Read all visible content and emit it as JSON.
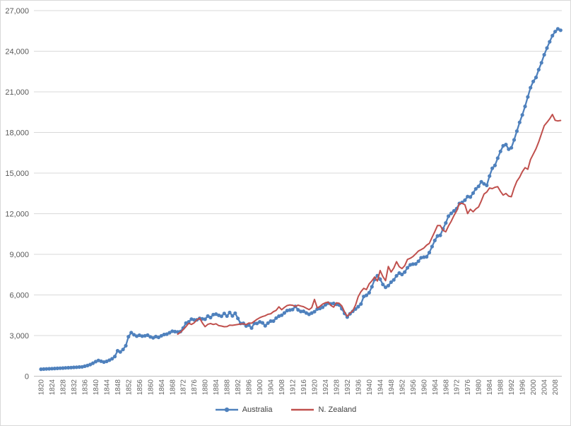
{
  "chart_data": {
    "type": "line",
    "title": "",
    "legend_position": "bottom",
    "grid": "horizontal",
    "y_axis": {
      "min": 0,
      "max": 27000,
      "step": 3000,
      "tick_labels": [
        "0",
        "3,000",
        "6,000",
        "9,000",
        "12,000",
        "15,000",
        "18,000",
        "21,000",
        "24,000",
        "27,000"
      ]
    },
    "x_axis": {
      "first_year": 1820,
      "last_year": 2010,
      "label_first": 1820,
      "label_last": 2008,
      "label_step": 4,
      "tick_labels": [
        "1820",
        "1824",
        "1828",
        "1832",
        "1836",
        "1840",
        "1844",
        "1848",
        "1852",
        "1856",
        "1860",
        "1864",
        "1868",
        "1872",
        "1876",
        "1880",
        "1884",
        "1888",
        "1892",
        "1896",
        "1900",
        "1904",
        "1908",
        "1912",
        "1916",
        "1920",
        "1924",
        "1928",
        "1932",
        "1936",
        "1940",
        "1944",
        "1948",
        "1952",
        "1956",
        "1960",
        "1964",
        "1968",
        "1972",
        "1976",
        "1980",
        "1984",
        "1988",
        "1992",
        "1996",
        "2000",
        "2004",
        "2008"
      ]
    },
    "series": [
      {
        "name": "Australia",
        "color": "#4F81BD",
        "marker": "circle",
        "start_year": 1820,
        "values": [
          518,
          528,
          538,
          548,
          558,
          569,
          580,
          591,
          602,
          614,
          626,
          638,
          650,
          663,
          676,
          690,
          734,
          787,
          859,
          959,
          1075,
          1164,
          1105,
          1043,
          1097,
          1183,
          1291,
          1457,
          1878,
          1790,
          1973,
          2250,
          2916,
          3218,
          3061,
          2959,
          3025,
          2958,
          2986,
          3031,
          2904,
          2835,
          2925,
          2870,
          2986,
          3079,
          3104,
          3211,
          3324,
          3290,
          3273,
          3299,
          3553,
          3922,
          4013,
          4216,
          4164,
          4161,
          4274,
          4238,
          4207,
          4439,
          4333,
          4551,
          4584,
          4500,
          4425,
          4634,
          4438,
          4702,
          4458,
          4654,
          4270,
          3895,
          3908,
          3712,
          3771,
          3559,
          3910,
          3899,
          4013,
          3937,
          3727,
          3921,
          4069,
          4069,
          4294,
          4437,
          4501,
          4672,
          4846,
          4886,
          4919,
          5157,
          4898,
          4778,
          4795,
          4669,
          4571,
          4666,
          4766,
          4962,
          5005,
          5094,
          5277,
          5394,
          5340,
          5372,
          5306,
          5263,
          4985,
          4634,
          4366,
          4611,
          4787,
          4962,
          5135,
          5333,
          5886,
          5976,
          6166,
          6604,
          7144,
          7423,
          7170,
          6772,
          6565,
          6688,
          6944,
          7109,
          7412,
          7616,
          7514,
          7692,
          8008,
          8222,
          8276,
          8292,
          8488,
          8747,
          8791,
          8816,
          9129,
          9573,
          10021,
          10355,
          10402,
          10880,
          11318,
          11818,
          12024,
          12208,
          12375,
          12759,
          12835,
          13000,
          13268,
          13231,
          13526,
          13834,
          14018,
          14357,
          14206,
          14093,
          14781,
          15353,
          15568,
          16102,
          16604,
          17014,
          17106,
          16764,
          16867,
          17454,
          18099,
          18747,
          19293,
          19925,
          20624,
          21306,
          21768,
          22065,
          22637,
          23150,
          23740,
          24233,
          24699,
          25150,
          25450,
          25650,
          25550
        ]
      },
      {
        "name": "N. Zealand",
        "color": "#C0504D",
        "marker": "none",
        "start_year": 1870,
        "values": [
          3100,
          3244,
          3437,
          3655,
          3906,
          3822,
          3940,
          4156,
          4293,
          3938,
          3658,
          3832,
          3894,
          3819,
          3872,
          3738,
          3702,
          3652,
          3665,
          3771,
          3755,
          3788,
          3818,
          3844,
          3877,
          3808,
          3931,
          3913,
          4058,
          4199,
          4320,
          4406,
          4467,
          4568,
          4608,
          4762,
          4862,
          5122,
          4912,
          5075,
          5216,
          5264,
          5236,
          5152,
          5247,
          5180,
          5135,
          5025,
          4915,
          5060,
          5670,
          5049,
          5155,
          5326,
          5426,
          5472,
          5220,
          5096,
          5419,
          5392,
          5185,
          4740,
          4430,
          4656,
          4831,
          5253,
          5878,
          6243,
          6489,
          6399,
          6821,
          7042,
          7323,
          7029,
          7807,
          7355,
          7055,
          8101,
          7691,
          7985,
          8456,
          8082,
          7944,
          8161,
          8624,
          8709,
          8834,
          9030,
          9245,
          9345,
          9465,
          9680,
          9810,
          10250,
          10680,
          11130,
          11128,
          10770,
          10665,
          11090,
          11444,
          11866,
          12210,
          12751,
          12762,
          12655,
          12008,
          12328,
          12143,
          12353,
          12500,
          12950,
          13450,
          13600,
          13900,
          13850,
          13950,
          14000,
          13650,
          13370,
          13500,
          13300,
          13250,
          13900,
          14400,
          14700,
          15100,
          15400,
          15280,
          16000,
          16400,
          16800,
          17300,
          17900,
          18500,
          18747,
          19000,
          19331,
          18900,
          18850,
          18886
        ]
      }
    ]
  },
  "legend": {
    "australia_label": "Australia",
    "nz_label": "N. Zealand"
  },
  "colors": {
    "australia": "#4F81BD",
    "new_zealand": "#C0504D",
    "gridline": "#D9D9D9",
    "axis_line": "#BFBFBF",
    "tick_text": "#595959",
    "background": "#FFFFFF",
    "border": "#D9D9D9"
  }
}
